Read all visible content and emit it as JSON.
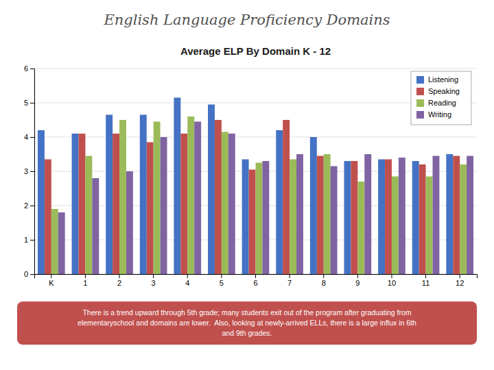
{
  "chart_data": {
    "type": "bar",
    "title": "English Language Proficiency Domains",
    "subtitle": "Average ELP By Domain K - 12",
    "annotations": [
      "There is a trend upward through 5th grade; many students exit out of the program after graduating from\nelementaryschool and domains are lower.  Also, looking at newly-arrived ELLs, there is a large influx in 6th\nand 9th grades."
    ],
    "categories": [
      "K",
      "1",
      "2",
      "3",
      "4",
      "5",
      "6",
      "7",
      "8",
      "9",
      "10",
      "11",
      "12"
    ],
    "series": [
      {
        "name": "Listening",
        "color": "#4472C4",
        "values": [
          4.2,
          4.1,
          4.65,
          4.65,
          5.15,
          4.95,
          3.35,
          4.2,
          4.0,
          3.3,
          3.35,
          3.3,
          3.5
        ]
      },
      {
        "name": "Speaking",
        "color": "#C0504D",
        "values": [
          3.35,
          4.1,
          4.1,
          3.85,
          4.1,
          4.5,
          3.05,
          4.5,
          3.45,
          3.3,
          3.35,
          3.2,
          3.45
        ]
      },
      {
        "name": "Reading",
        "color": "#9BBB59",
        "values": [
          1.9,
          3.45,
          4.5,
          4.45,
          4.6,
          4.15,
          3.25,
          3.35,
          3.5,
          2.7,
          2.85,
          2.85,
          3.2
        ]
      },
      {
        "name": "Writing",
        "color": "#8064A2",
        "values": [
          1.8,
          2.8,
          3.0,
          4.0,
          4.45,
          4.1,
          3.3,
          3.5,
          3.15,
          3.5,
          3.4,
          3.45,
          3.45
        ]
      }
    ],
    "ylim": [
      0,
      6
    ],
    "yticks": [
      0,
      1,
      2,
      3,
      4,
      5,
      6
    ],
    "grid": true,
    "legend": "upper right"
  }
}
